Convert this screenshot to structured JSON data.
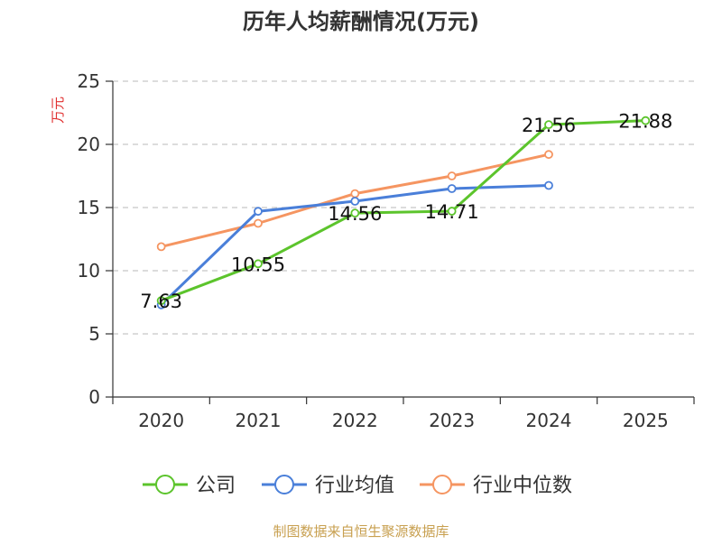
{
  "chart_data": {
    "type": "line",
    "title": "历年人均薪酬情况(万元)",
    "ylabel": "万元",
    "xlabel": "",
    "categories": [
      "2020",
      "2021",
      "2022",
      "2023",
      "2024",
      "2025"
    ],
    "ylim": [
      0,
      25
    ],
    "yticks": [
      0,
      5,
      10,
      15,
      20,
      25
    ],
    "grid": "horizontal-dashed",
    "legend_position": "bottom",
    "series": [
      {
        "name": "公司",
        "color": "#5cc42c",
        "values": [
          7.63,
          10.55,
          14.56,
          14.71,
          21.56,
          21.88
        ],
        "data_labels": [
          "7.63",
          "10.55",
          "14.56",
          "14.71",
          "21.56",
          "21.88"
        ]
      },
      {
        "name": "行业均值",
        "color": "#4a7fd9",
        "values": [
          7.3,
          14.7,
          15.5,
          16.5,
          16.75,
          null
        ]
      },
      {
        "name": "行业中位数",
        "color": "#f59561",
        "values": [
          11.9,
          13.75,
          16.1,
          17.5,
          19.2,
          null
        ]
      }
    ]
  },
  "source_text": "制图数据来自恒生聚源数据库"
}
